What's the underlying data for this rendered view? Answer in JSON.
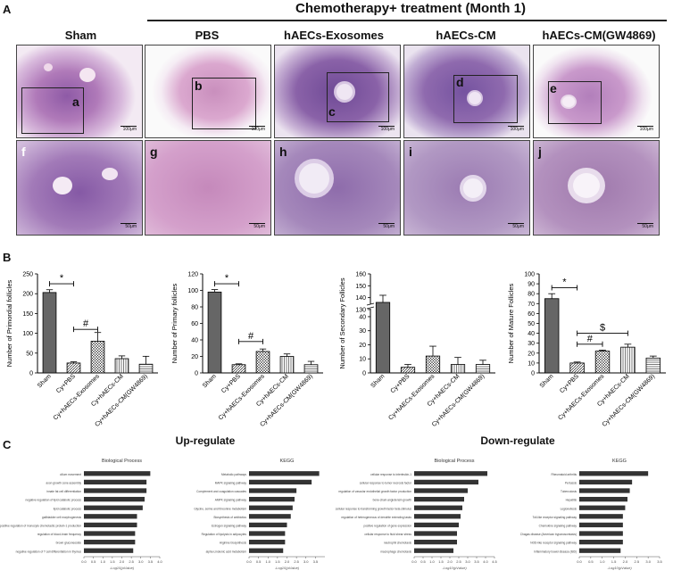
{
  "panel_labels": {
    "A": "A",
    "B": "B",
    "C": "C"
  },
  "header_group": "Chemotherapy+ treatment (Month 1)",
  "columns": [
    "Sham",
    "PBS",
    "hAECs-Exosomes",
    "hAECs-CM",
    "hAECs-CM(GW4869)"
  ],
  "sublabels_top": [
    "a",
    "b",
    "c",
    "d",
    "e"
  ],
  "sublabels_bottom": [
    "f",
    "g",
    "h",
    "i",
    "j"
  ],
  "scale_top": "100μm",
  "scale_bottom": "50μm",
  "colors": {
    "stain_pink": "#d79bc8",
    "stain_purple": "#7e4e9e",
    "stain_dark": "#5a3a82",
    "bar_dark": "#333333"
  },
  "chart_data": [
    {
      "type": "bar",
      "ylabel": "Number of Primordial follicles",
      "categories": [
        "Sham",
        "Cy+PBS",
        "Cy+hAECs-Exosomes",
        "Cy+hAECs-CM",
        "Cy+hAECs-CM(GW4869)"
      ],
      "values": [
        203,
        25,
        80,
        36,
        22
      ],
      "errors": [
        7,
        3,
        22,
        7,
        20
      ],
      "ylim": [
        0,
        250
      ],
      "yticks": [
        "0",
        "50",
        "100",
        "150",
        "200",
        "250"
      ],
      "annotations": [
        "*",
        "#"
      ]
    },
    {
      "type": "bar",
      "ylabel": "Number of Primary follicles",
      "categories": [
        "Sham",
        "Cy+PBS",
        "Cy+hAECs-Exosomes",
        "Cy+hAECs-CM",
        "Cy+hAECs-CM(GW4869)"
      ],
      "values": [
        98,
        10,
        26,
        20,
        10
      ],
      "errors": [
        3,
        1,
        3,
        3,
        4
      ],
      "ylim": [
        0,
        120
      ],
      "yticks": [
        "0",
        "20",
        "40",
        "60",
        "80",
        "100",
        "120"
      ],
      "annotations": [
        "*",
        "#"
      ]
    },
    {
      "type": "bar",
      "ylabel": "Number of Secondary Follicles",
      "categories": [
        "Sham",
        "Cy+PBS",
        "Cy+hAECs-Exosomes",
        "Cy+hAECs-CM",
        "Cy+hAECs-CM(GW4869)"
      ],
      "values": [
        136,
        4,
        12,
        6,
        6
      ],
      "errors": [
        6,
        2,
        7,
        5,
        3
      ],
      "ylim": [
        0,
        160
      ],
      "yticks": [
        "0",
        "10",
        "20",
        "30",
        "40",
        "130",
        "140",
        "150",
        "160"
      ],
      "annotations": []
    },
    {
      "type": "bar",
      "ylabel": "Number of Mature Follicles",
      "categories": [
        "Sham",
        "Cy+PBS",
        "Cy+hAECs-Exosomes",
        "Cy+hAECs-CM",
        "Cy+hAECs-CM(GW4869)"
      ],
      "values": [
        75,
        10,
        22,
        26,
        15
      ],
      "errors": [
        5,
        1,
        1,
        3,
        2
      ],
      "ylim": [
        0,
        100
      ],
      "yticks": [
        "0",
        "10",
        "20",
        "30",
        "40",
        "50",
        "60",
        "70",
        "80",
        "90",
        "100"
      ],
      "annotations": [
        "*",
        "#",
        "$"
      ]
    },
    {
      "type": "bar",
      "orientation": "horizontal",
      "group": "Up-regulate",
      "title": "Biological Process",
      "xlabel": "-Log10(pValue)",
      "categories": [
        "cilium movement",
        "axon growth cone assembly",
        "innate fat cell differentiation",
        "negative regulation of lipid catabolic process",
        "lipid catabolic process",
        "gallbladder cell morphogenesis",
        "positive regulation of monocyte chemotactic protein-1 production",
        "regulation of blood-brain frequency",
        "brown gluconeoside",
        "negative regulation of T cell differentiation in thymus"
      ],
      "values": [
        3.5,
        3.3,
        3.3,
        3.2,
        3.1,
        2.8,
        2.8,
        2.7,
        2.7,
        2.6
      ],
      "xlim": [
        0,
        4.0
      ],
      "xticks": [
        "0.0",
        "0.5",
        "1.0",
        "1.5",
        "2.0",
        "2.5",
        "3.0",
        "3.5",
        "4.0"
      ]
    },
    {
      "type": "bar",
      "orientation": "horizontal",
      "group": "Up-regulate",
      "title": "KEGG",
      "xlabel": "-Log10(pValue)",
      "categories": [
        "Metabolic pathways",
        "MAPK signaling pathway",
        "Complement and coagulation cascades",
        "AMPK signaling pathway",
        "Glycine, serine and threonine metabolism",
        "Biosynthesis of antibiotics",
        "Estrogen signaling pathway",
        "Regulation of lipolysis in adipocytes",
        "Arginine biosynthesis",
        "alpha-Linolenic acid metabolism"
      ],
      "values": [
        3.7,
        3.3,
        2.5,
        2.4,
        2.3,
        2.2,
        2.0,
        1.9,
        1.9,
        1.8
      ],
      "xlim": [
        0,
        4.0
      ],
      "xticks": [
        "0.0",
        "0.5",
        "1.0",
        "1.5",
        "2.0",
        "2.5",
        "3.0",
        "3.5"
      ]
    },
    {
      "type": "bar",
      "orientation": "horizontal",
      "group": "Down-regulate",
      "title": "Biological Process",
      "xlabel": "-Log10(pValue)",
      "categories": [
        "cellular response to interleukin-1",
        "cellular response to tumor necrosis factor",
        "regulation of vascular endothelial growth factor production",
        "bone-chain angiotensin growth",
        "cellular response to transforming growth factor beta stimulus",
        "regulation of heterogeneous of dendrite extending tasks",
        "positive regulation of gene expression",
        "cellular response to fluid shear stress",
        "neutrophil chemotaxis",
        "macrophage chemotaxis"
      ],
      "values": [
        4.1,
        3.6,
        3.0,
        2.8,
        2.7,
        2.6,
        2.5,
        2.4,
        2.4,
        2.2
      ],
      "xlim": [
        0,
        4.5
      ],
      "xticks": [
        "0.0",
        "0.5",
        "1.0",
        "1.5",
        "2.0",
        "2.5",
        "3.0",
        "3.5",
        "4.0",
        "4.5"
      ]
    },
    {
      "type": "bar",
      "orientation": "horizontal",
      "group": "Down-regulate",
      "title": "KEGG",
      "xlabel": "-Log10(pValue)",
      "categories": [
        "Rheumatoid arthritis",
        "Pertussis",
        "Tuberculosis",
        "Hepatitis",
        "Legionellosis",
        "Toll-like receptor signaling pathway",
        "Chemokine signaling pathway",
        "Chagas disease (American trypanosomiasis)",
        "NOD-like receptor signaling pathway",
        "Inflammatory bowel disease (IBD)"
      ],
      "values": [
        3.0,
        2.3,
        2.2,
        2.1,
        2.0,
        1.9,
        1.9,
        1.9,
        1.9,
        1.8
      ],
      "xlim": [
        0,
        3.5
      ],
      "xticks": [
        "0.0",
        "0.5",
        "1.0",
        "1.5",
        "2.0",
        "2.5",
        "3.0",
        "3.5"
      ]
    }
  ]
}
